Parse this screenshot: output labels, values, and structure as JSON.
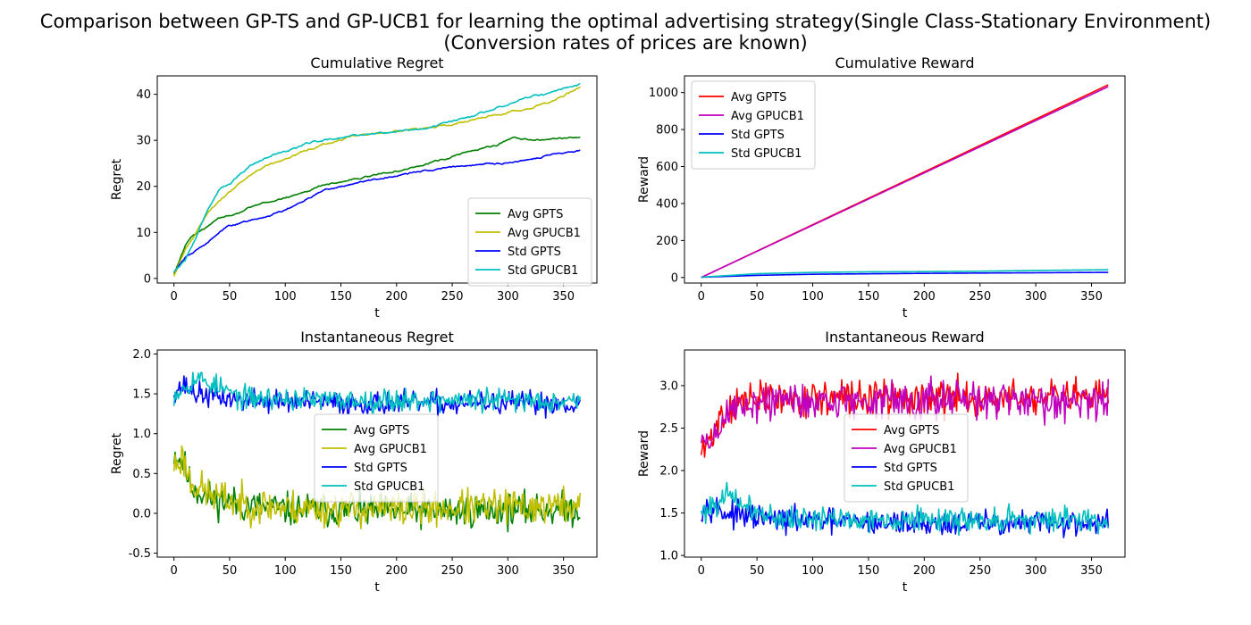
{
  "suptitle": {
    "line1": "Comparison between GP-TS and GP-UCB1 for learning the optimal advertising strategy(Single Class-Stationary Environment)",
    "line2": "(Conversion rates of prices are known)"
  },
  "colors": {
    "green": "#008000",
    "yellow": "#bfbf00",
    "blue": "#0000ff",
    "cyan": "#00bfbf",
    "red": "#ff0000",
    "magenta": "#bf00bf"
  },
  "chart_data": [
    {
      "id": "cum_regret",
      "type": "line",
      "title": "Cumulative Regret",
      "xlabel": "t",
      "ylabel": "Regret",
      "xlim": [
        -15,
        380
      ],
      "ylim": [
        -1,
        44
      ],
      "xticks": [
        0,
        50,
        100,
        150,
        200,
        250,
        300,
        350
      ],
      "yticks": [
        0,
        10,
        20,
        30,
        40
      ],
      "legend": "lower-right",
      "series": [
        {
          "name": "Avg GPTS",
          "color": "green",
          "kind": "curve",
          "noise": 0.25,
          "points": [
            [
              0,
              1
            ],
            [
              5,
              4
            ],
            [
              10,
              7
            ],
            [
              15,
              9
            ],
            [
              25,
              10.5
            ],
            [
              40,
              12.8
            ],
            [
              60,
              14.5
            ],
            [
              80,
              16.3
            ],
            [
              100,
              17.5
            ],
            [
              130,
              20
            ],
            [
              150,
              21
            ],
            [
              170,
              22
            ],
            [
              200,
              23.3
            ],
            [
              230,
              25
            ],
            [
              260,
              27.3
            ],
            [
              290,
              29
            ],
            [
              305,
              30.5
            ],
            [
              320,
              30
            ],
            [
              340,
              30.2
            ],
            [
              365,
              30.7
            ]
          ]
        },
        {
          "name": "Avg GPUCB1",
          "color": "yellow",
          "kind": "curve",
          "noise": 0.3,
          "points": [
            [
              0,
              0.5
            ],
            [
              10,
              6
            ],
            [
              20,
              10
            ],
            [
              30,
              14
            ],
            [
              40,
              17
            ],
            [
              50,
              19
            ],
            [
              60,
              21
            ],
            [
              80,
              24
            ],
            [
              100,
              26
            ],
            [
              120,
              28
            ],
            [
              140,
              29.5
            ],
            [
              160,
              30.8
            ],
            [
              180,
              31.5
            ],
            [
              200,
              32
            ],
            [
              220,
              32.5
            ],
            [
              250,
              33.5
            ],
            [
              280,
              35
            ],
            [
              300,
              36
            ],
            [
              320,
              37
            ],
            [
              340,
              38.5
            ],
            [
              365,
              41.5
            ]
          ]
        },
        {
          "name": "Std GPTS",
          "color": "blue",
          "kind": "curve",
          "noise": 0.25,
          "points": [
            [
              0,
              1.5
            ],
            [
              10,
              4.5
            ],
            [
              20,
              6
            ],
            [
              30,
              8
            ],
            [
              40,
              10
            ],
            [
              50,
              11.5
            ],
            [
              60,
              12
            ],
            [
              80,
              13.2
            ],
            [
              100,
              15
            ],
            [
              130,
              18.5
            ],
            [
              150,
              20
            ],
            [
              170,
              21
            ],
            [
              200,
              22.3
            ],
            [
              230,
              23.5
            ],
            [
              260,
              24.5
            ],
            [
              290,
              25
            ],
            [
              310,
              25.5
            ],
            [
              340,
              27
            ],
            [
              365,
              27.8
            ]
          ]
        },
        {
          "name": "Std GPUCB1",
          "color": "cyan",
          "kind": "curve",
          "noise": 0.3,
          "points": [
            [
              0,
              1.5
            ],
            [
              10,
              4
            ],
            [
              20,
              9
            ],
            [
              30,
              15
            ],
            [
              40,
              19
            ],
            [
              50,
              20.5
            ],
            [
              60,
              23
            ],
            [
              70,
              24.8
            ],
            [
              80,
              26
            ],
            [
              90,
              27
            ],
            [
              100,
              27.5
            ],
            [
              120,
              29.5
            ],
            [
              140,
              30.3
            ],
            [
              160,
              31
            ],
            [
              180,
              31.5
            ],
            [
              200,
              31.8
            ],
            [
              220,
              32.5
            ],
            [
              250,
              34
            ],
            [
              280,
              36.2
            ],
            [
              300,
              38
            ],
            [
              320,
              39.5
            ],
            [
              340,
              40.2
            ],
            [
              365,
              42
            ]
          ]
        }
      ]
    },
    {
      "id": "cum_reward",
      "type": "line",
      "title": "Cumulative Reward",
      "xlabel": "t",
      "ylabel": "Reward",
      "xlim": [
        -15,
        380
      ],
      "ylim": [
        -30,
        1090
      ],
      "xticks": [
        0,
        50,
        100,
        150,
        200,
        250,
        300,
        350
      ],
      "yticks": [
        0,
        200,
        400,
        600,
        800,
        1000
      ],
      "legend": "upper-left",
      "series": [
        {
          "name": "Avg GPTS",
          "color": "red",
          "kind": "curve",
          "noise": 0,
          "points": [
            [
              0,
              0
            ],
            [
              365,
              1042
            ]
          ]
        },
        {
          "name": "Avg GPUCB1",
          "color": "magenta",
          "kind": "curve",
          "noise": 0,
          "points": [
            [
              0,
              0
            ],
            [
              365,
              1032
            ]
          ]
        },
        {
          "name": "Std GPTS",
          "color": "blue",
          "kind": "curve",
          "noise": 0,
          "points": [
            [
              0,
              1.5
            ],
            [
              50,
              11.5
            ],
            [
              100,
              17.5
            ],
            [
              150,
              20
            ],
            [
              200,
              22.3
            ],
            [
              250,
              24
            ],
            [
              300,
              25.5
            ],
            [
              365,
              27.8
            ]
          ]
        },
        {
          "name": "Std GPUCB1",
          "color": "cyan",
          "kind": "curve",
          "noise": 0,
          "points": [
            [
              0,
              1.5
            ],
            [
              50,
              20.5
            ],
            [
              100,
              27.5
            ],
            [
              150,
              30.5
            ],
            [
              200,
              31.8
            ],
            [
              250,
              34
            ],
            [
              300,
              38
            ],
            [
              365,
              42
            ]
          ]
        }
      ]
    },
    {
      "id": "inst_regret",
      "type": "line",
      "title": "Instantaneous Regret",
      "xlabel": "t",
      "ylabel": "Regret",
      "xlim": [
        -15,
        380
      ],
      "ylim": [
        -0.55,
        2.05
      ],
      "xticks": [
        0,
        50,
        100,
        150,
        200,
        250,
        300,
        350
      ],
      "yticks": [
        -0.5,
        0.0,
        0.5,
        1.0,
        1.5,
        2.0
      ],
      "legend": "center",
      "series": [
        {
          "name": "Avg GPTS",
          "color": "green",
          "kind": "noisy",
          "noise": 0.13,
          "seed": 11,
          "points": [
            [
              0,
              0.75
            ],
            [
              8,
              0.65
            ],
            [
              15,
              0.35
            ],
            [
              30,
              0.2
            ],
            [
              60,
              0.1
            ],
            [
              100,
              0.05
            ],
            [
              200,
              0.02
            ],
            [
              365,
              0.05
            ]
          ]
        },
        {
          "name": "Avg GPUCB1",
          "color": "yellow",
          "kind": "noisy",
          "noise": 0.14,
          "seed": 23,
          "points": [
            [
              0,
              0.6
            ],
            [
              8,
              0.7
            ],
            [
              15,
              0.4
            ],
            [
              30,
              0.25
            ],
            [
              60,
              0.12
            ],
            [
              100,
              0.07
            ],
            [
              200,
              0.05
            ],
            [
              365,
              0.1
            ]
          ]
        },
        {
          "name": "Std GPTS",
          "color": "blue",
          "kind": "noisy",
          "noise": 0.09,
          "seed": 37,
          "points": [
            [
              0,
              1.55
            ],
            [
              10,
              1.6
            ],
            [
              20,
              1.5
            ],
            [
              60,
              1.42
            ],
            [
              150,
              1.38
            ],
            [
              365,
              1.38
            ]
          ]
        },
        {
          "name": "Std GPUCB1",
          "color": "cyan",
          "kind": "noisy",
          "noise": 0.09,
          "seed": 53,
          "points": [
            [
              0,
              1.5
            ],
            [
              20,
              1.7
            ],
            [
              30,
              1.65
            ],
            [
              60,
              1.45
            ],
            [
              150,
              1.42
            ],
            [
              365,
              1.42
            ]
          ]
        }
      ]
    },
    {
      "id": "inst_reward",
      "type": "line",
      "title": "Instantaneous Reward",
      "xlabel": "t",
      "ylabel": "Reward",
      "xlim": [
        -15,
        380
      ],
      "ylim": [
        0.98,
        3.42
      ],
      "xticks": [
        0,
        50,
        100,
        150,
        200,
        250,
        300,
        350
      ],
      "yticks": [
        1.0,
        1.5,
        2.0,
        2.5,
        3.0
      ],
      "legend": "center",
      "series": [
        {
          "name": "Avg GPTS",
          "color": "red",
          "kind": "noisy",
          "noise": 0.13,
          "seed": 71,
          "points": [
            [
              0,
              2.2
            ],
            [
              8,
              2.35
            ],
            [
              15,
              2.6
            ],
            [
              30,
              2.8
            ],
            [
              60,
              2.85
            ],
            [
              365,
              2.85
            ]
          ]
        },
        {
          "name": "Avg GPUCB1",
          "color": "magenta",
          "kind": "noisy",
          "noise": 0.14,
          "seed": 89,
          "points": [
            [
              0,
              2.35
            ],
            [
              8,
              2.3
            ],
            [
              15,
              2.5
            ],
            [
              30,
              2.75
            ],
            [
              60,
              2.82
            ],
            [
              365,
              2.83
            ]
          ]
        },
        {
          "name": "Std GPTS",
          "color": "blue",
          "kind": "noisy",
          "noise": 0.09,
          "seed": 97,
          "points": [
            [
              0,
              1.55
            ],
            [
              10,
              1.6
            ],
            [
              20,
              1.5
            ],
            [
              60,
              1.42
            ],
            [
              150,
              1.38
            ],
            [
              365,
              1.38
            ]
          ]
        },
        {
          "name": "Std GPUCB1",
          "color": "cyan",
          "kind": "noisy",
          "noise": 0.09,
          "seed": 101,
          "points": [
            [
              0,
              1.5
            ],
            [
              20,
              1.7
            ],
            [
              30,
              1.65
            ],
            [
              60,
              1.45
            ],
            [
              150,
              1.42
            ],
            [
              365,
              1.42
            ]
          ]
        }
      ]
    }
  ]
}
